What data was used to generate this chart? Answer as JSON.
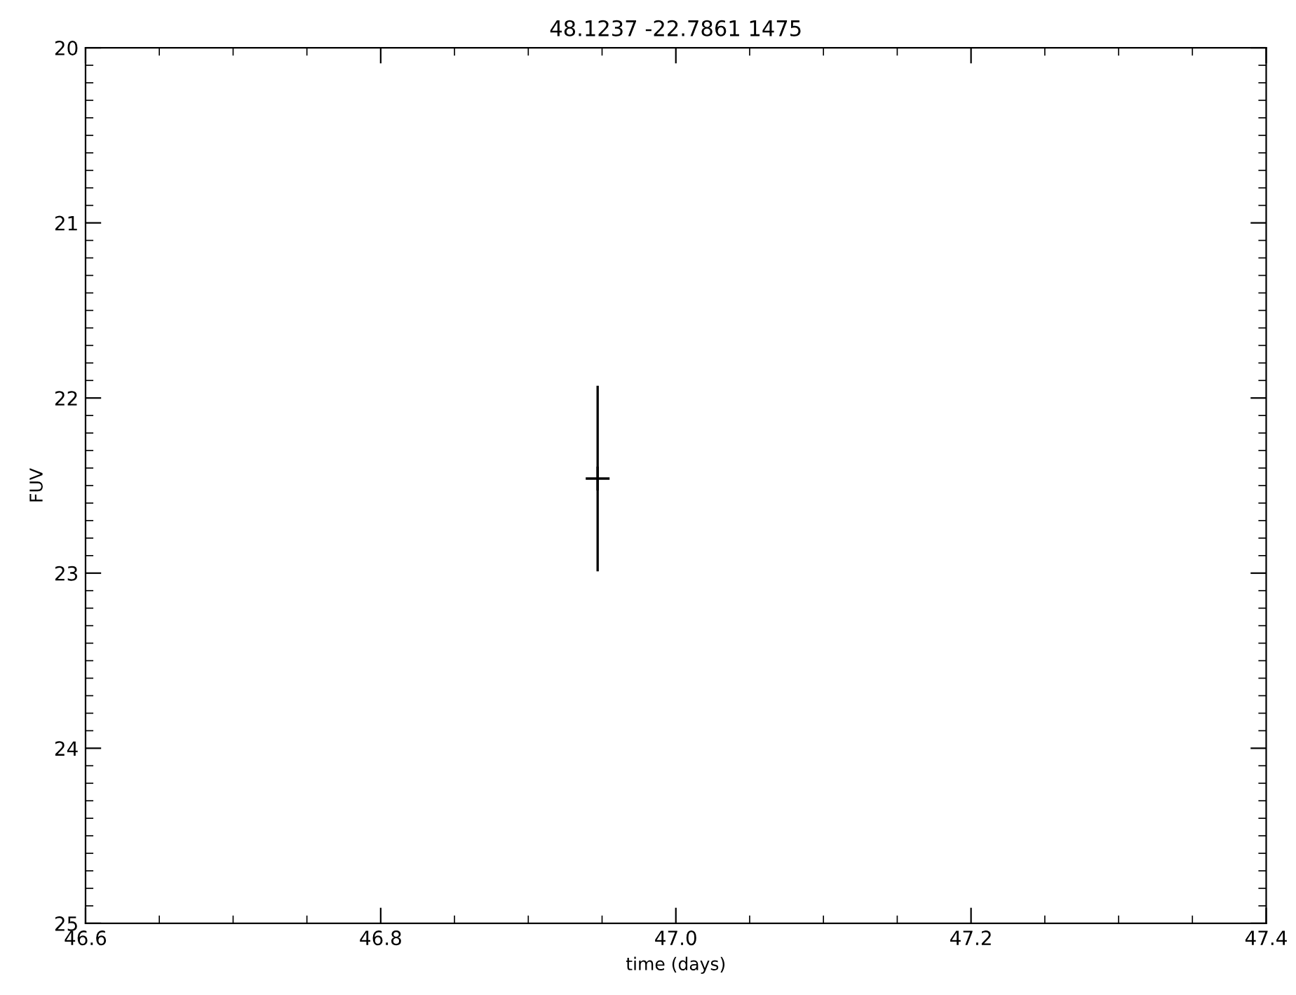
{
  "chart_data": {
    "type": "scatter",
    "title": "48.1237 -22.7861 1475",
    "xlabel": "time (days)",
    "ylabel": "FUV",
    "x": [
      46.947
    ],
    "values": [
      22.46
    ],
    "errors": [
      0.53
    ],
    "color": "#000000",
    "marker": "cross",
    "xlim": [
      46.6,
      47.4
    ],
    "xticks": [
      {
        "value": 46.6,
        "label": "46.6"
      },
      {
        "value": 46.8,
        "label": "46.8"
      },
      {
        "value": 47.0,
        "label": "47.0"
      },
      {
        "value": 47.2,
        "label": "47.2"
      },
      {
        "value": 47.4,
        "label": "47.4"
      }
    ],
    "ylim": [
      25,
      20
    ],
    "yticks": [
      20,
      21,
      22,
      23,
      24,
      25
    ],
    "grid": false
  }
}
